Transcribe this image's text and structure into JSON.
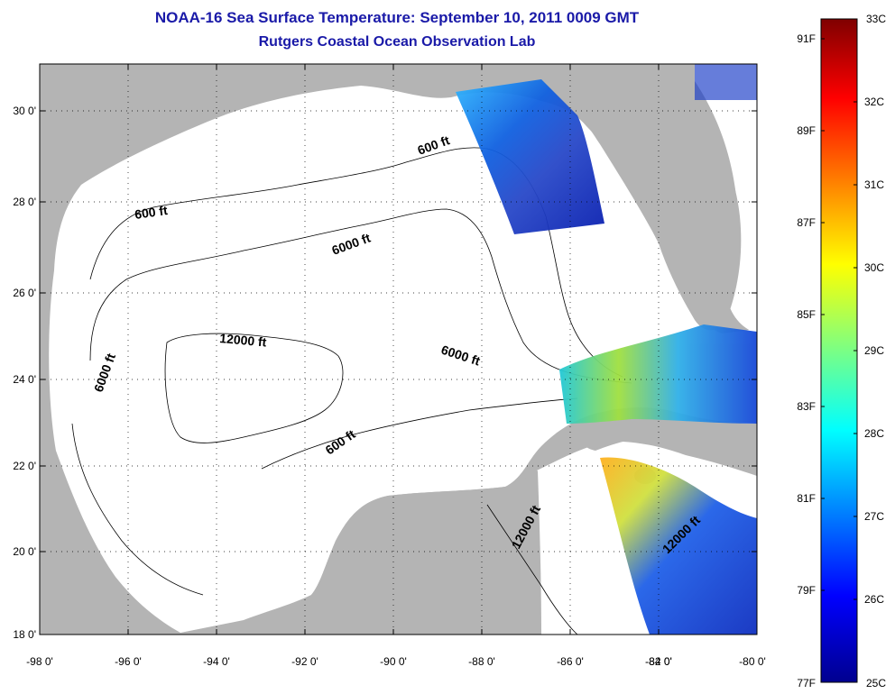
{
  "title": {
    "line1": "NOAA-16 Sea Surface Temperature:  September 10, 2011 0009 GMT",
    "line2": "Rutgers Coastal Ocean Observation Lab"
  },
  "map": {
    "lon_range": [
      -98,
      -80
    ],
    "lat_range": [
      18,
      31
    ],
    "x_tick_labels": [
      "-98 0'",
      "-96 0'",
      "-94 0'",
      "-92 0'",
      "-90 0'",
      "-88 0'",
      "-86 0'",
      "-84 0'",
      "-82 0'",
      "-80 0'"
    ],
    "y_tick_labels": [
      "30 0'",
      "28 0'",
      "26 0'",
      "24 0'",
      "22 0'",
      "20 0'",
      "18 0'"
    ],
    "grid": "dotted",
    "land_color": "#b4b4b4",
    "ocean_color": "#ffffff",
    "contour_labels": [
      {
        "id": "c600-north",
        "text": "600 ft"
      },
      {
        "id": "c600-west",
        "text": "600 ft"
      },
      {
        "id": "c6000-north",
        "text": "6000 ft"
      },
      {
        "id": "c6000-west",
        "text": "6000 ft"
      },
      {
        "id": "c6000-east",
        "text": "6000 ft"
      },
      {
        "id": "c12000-central",
        "text": "12000 ft"
      },
      {
        "id": "c600-south",
        "text": "600 ft"
      },
      {
        "id": "c12000-yucatan",
        "text": "12000 ft"
      },
      {
        "id": "c12000-caribbean",
        "text": "12000 ft"
      }
    ]
  },
  "colorbar": {
    "celsius_labels": [
      "33C",
      "32C",
      "31C",
      "30C",
      "29C",
      "28C",
      "27C",
      "26C",
      "25C"
    ],
    "fahrenheit_labels": [
      "91F",
      "89F",
      "87F",
      "85F",
      "83F",
      "81F",
      "79F",
      "77F"
    ],
    "colormap": "jet",
    "colors": [
      "#7f0000",
      "#ff0000",
      "#ff8000",
      "#ffff00",
      "#80ff80",
      "#00ffff",
      "#0080ff",
      "#0000ff",
      "#00008f"
    ]
  }
}
